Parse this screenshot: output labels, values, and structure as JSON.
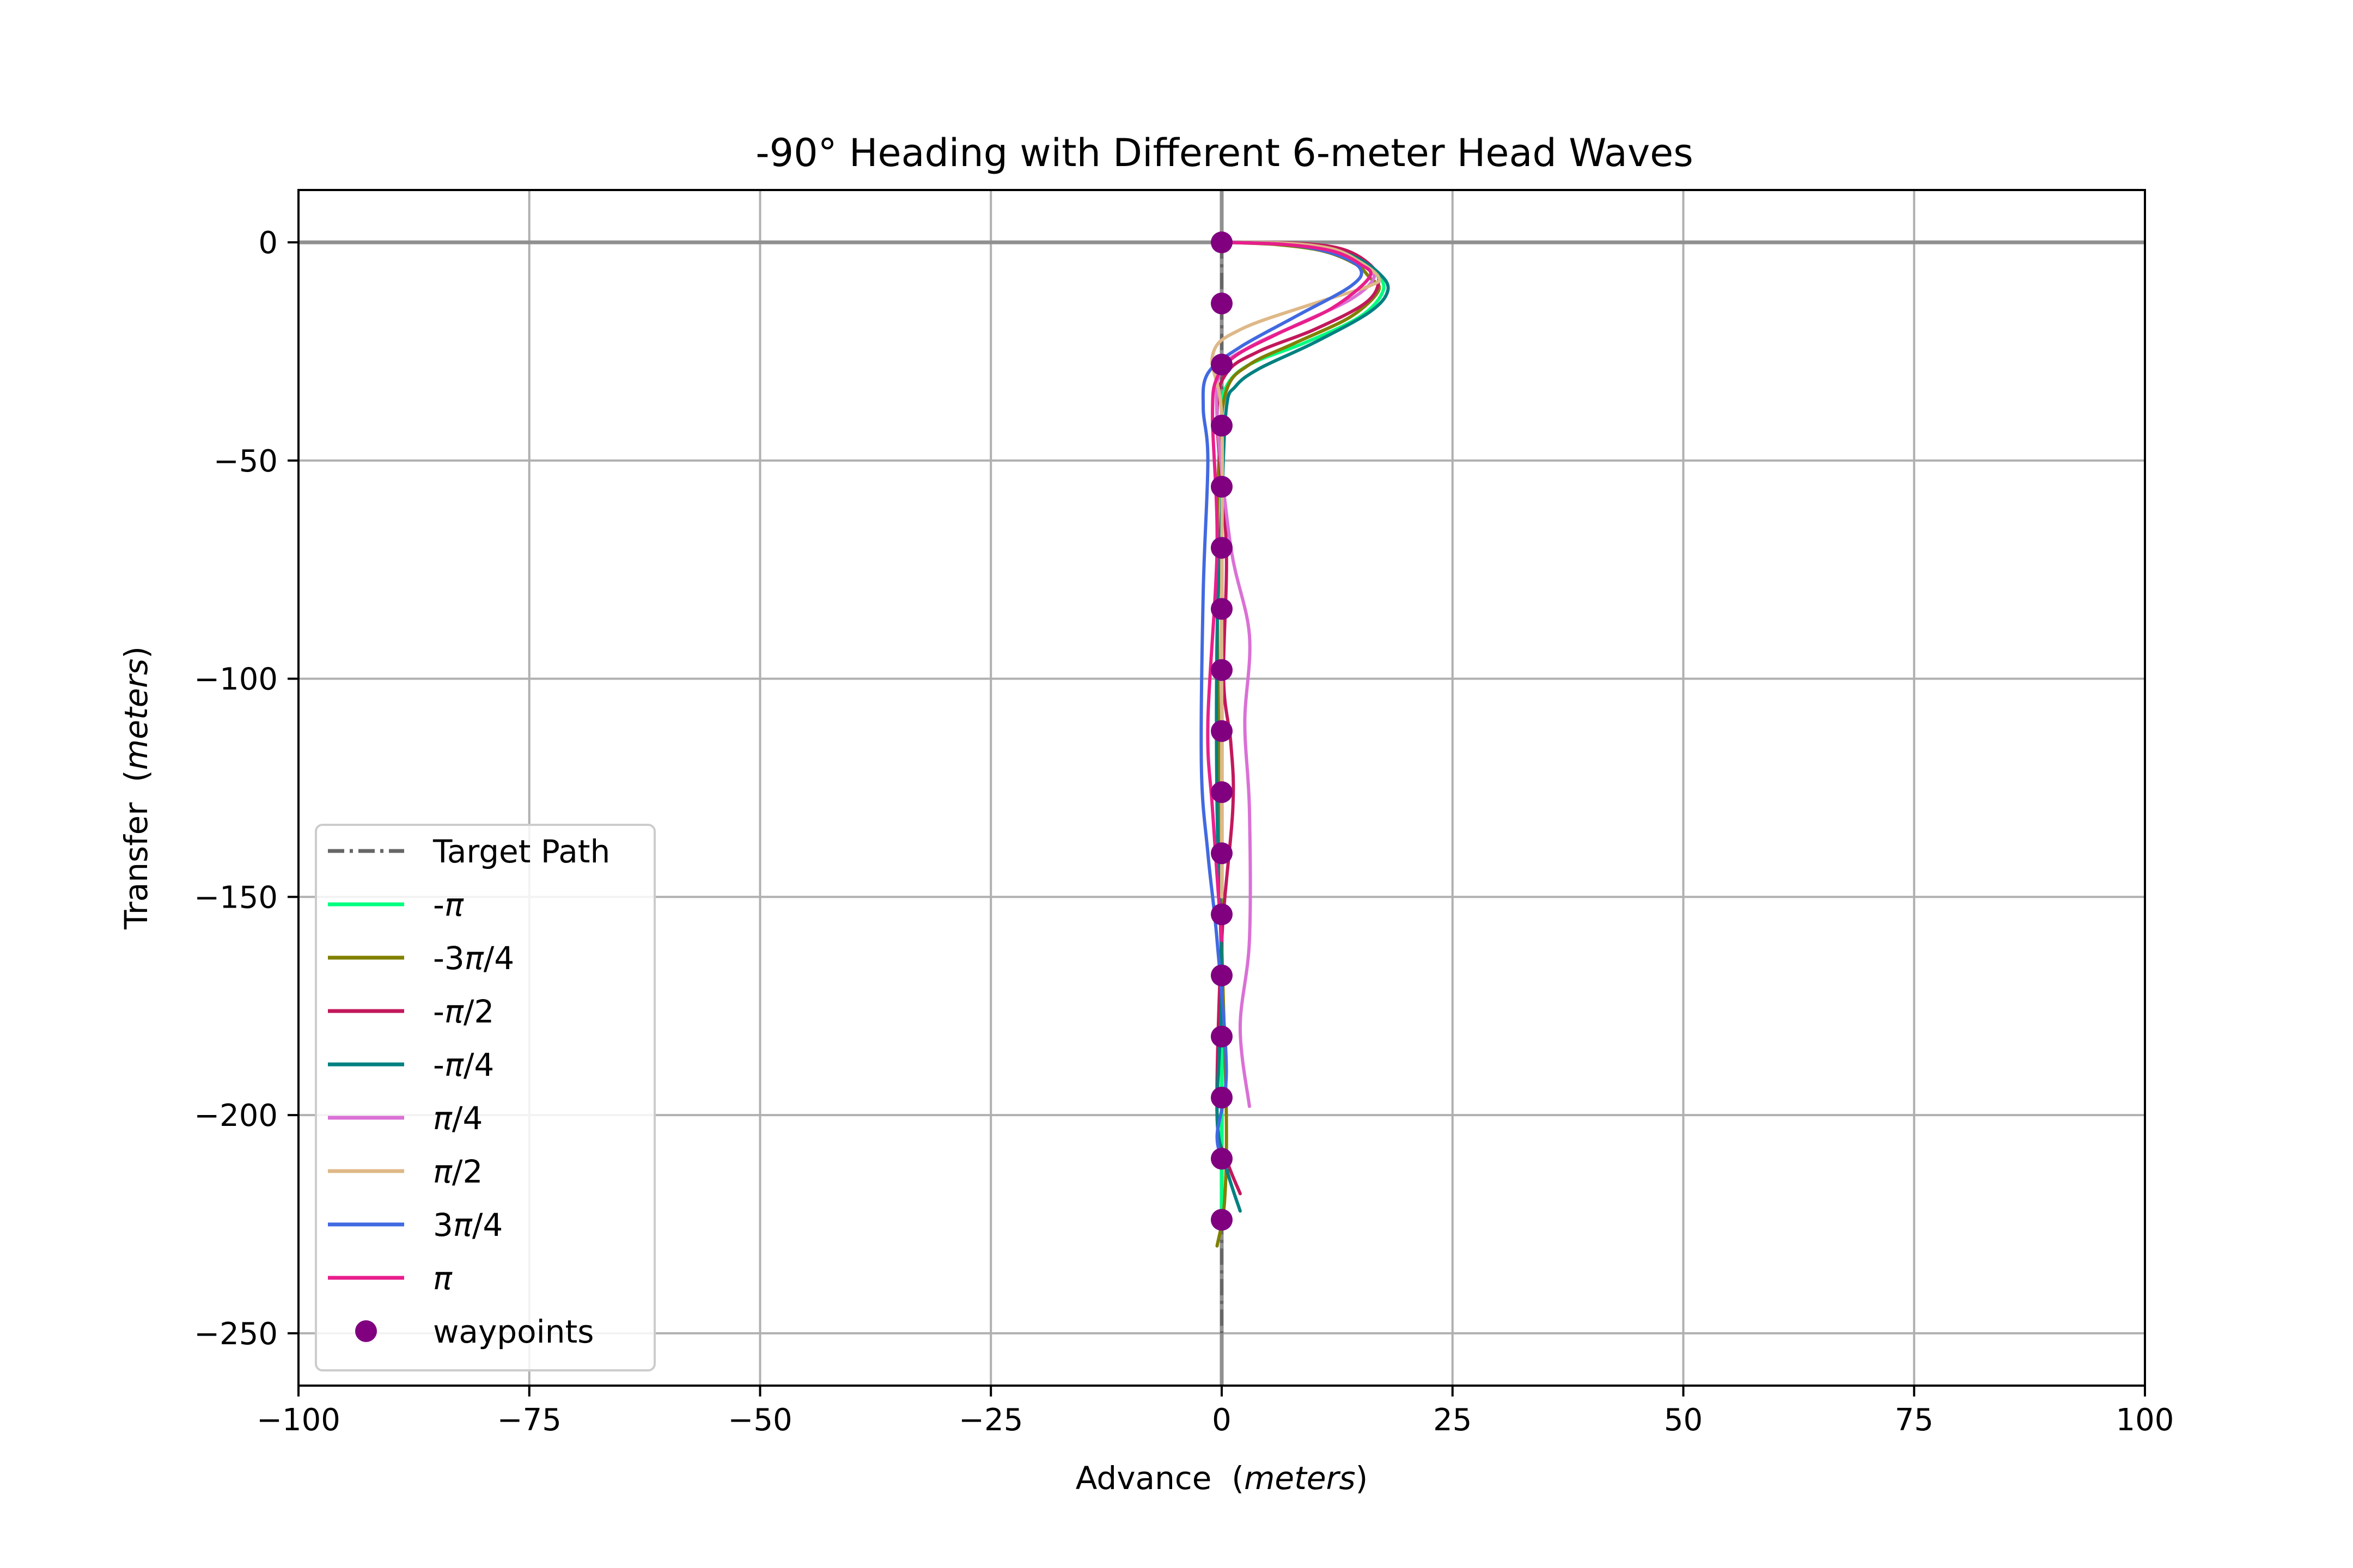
{
  "chart_data": {
    "type": "line",
    "title": "-90° Heading with Different 6-meter Head Waves",
    "xlabel": {
      "main": "Advance",
      "unit": "meters"
    },
    "ylabel": {
      "main": "Transfer",
      "unit": "meters"
    },
    "xlim": [
      -100,
      100
    ],
    "ylim": [
      -262,
      12
    ],
    "xticks": [
      -100,
      -75,
      -50,
      -25,
      0,
      25,
      50,
      75,
      100
    ],
    "yticks": [
      -250,
      -200,
      -150,
      -100,
      -50,
      0
    ],
    "xtick_labels": [
      "−100",
      "−75",
      "−50",
      "−25",
      "0",
      "25",
      "50",
      "75",
      "100"
    ],
    "ytick_labels": [
      "−250",
      "−200",
      "−150",
      "−100",
      "−50",
      "0"
    ],
    "grid": true,
    "legend_position": "lower-left",
    "target_path": {
      "name": "Target Path",
      "color": "#666666",
      "x": [
        0,
        0
      ],
      "y": [
        0,
        -250
      ]
    },
    "series": [
      {
        "name": "-π",
        "name_parts": [
          "-",
          "π",
          ""
        ],
        "color": "#00ff7f",
        "x": [
          0,
          8,
          13,
          16.5,
          17.5,
          15,
          9,
          3,
          0.5,
          0,
          0,
          0,
          0,
          0,
          0,
          0,
          0
        ],
        "y": [
          0,
          -0.5,
          -3,
          -7,
          -11,
          -17,
          -23,
          -28,
          -33,
          -40,
          -60,
          -90,
          -120,
          -150,
          -180,
          -210,
          -225
        ]
      },
      {
        "name": "-3π/4",
        "name_parts": [
          "-3",
          "π",
          "/4"
        ],
        "color": "#808000",
        "x": [
          0,
          6,
          11,
          14.5,
          16,
          17,
          14,
          8,
          3,
          0.5,
          -0.3,
          -0.5,
          -0.3,
          0,
          0.5,
          0.3,
          -0.5
        ],
        "y": [
          0,
          -0.5,
          -2,
          -5,
          -8,
          -11,
          -17,
          -23,
          -28,
          -34,
          -50,
          -80,
          -120,
          -160,
          -200,
          -220,
          -230
        ]
      },
      {
        "name": "-π/2",
        "name_parts": [
          "-",
          "π",
          "/2"
        ],
        "color": "#c2185b",
        "x": [
          0,
          8,
          13,
          16,
          17,
          15.5,
          10,
          4,
          0.5,
          -0.5,
          0.5,
          0.2,
          1,
          1.2,
          0,
          -0.5,
          0.5,
          2
        ],
        "y": [
          0,
          -0.2,
          -1.5,
          -5,
          -9,
          -14,
          -20,
          -25,
          -30,
          -40,
          -70,
          -100,
          -115,
          -130,
          -160,
          -200,
          -210,
          -218
        ]
      },
      {
        "name": "-π/4",
        "name_parts": [
          "-",
          "π",
          "/4"
        ],
        "color": "#008080",
        "x": [
          0,
          9,
          14,
          17,
          18,
          16,
          10,
          4,
          1.5,
          0.5,
          0,
          -0.5,
          -0.5,
          0,
          -0.5,
          0.5,
          2
        ],
        "y": [
          0,
          -0.5,
          -3,
          -7,
          -11,
          -16,
          -23,
          -29,
          -33,
          -38,
          -60,
          -90,
          -130,
          -170,
          -200,
          -212,
          -222
        ]
      },
      {
        "name": "π/4",
        "name_parts": [
          "",
          "π",
          "/4"
        ],
        "color": "#da70d6",
        "x": [
          0,
          7,
          12,
          15,
          16.5,
          14,
          8,
          3,
          0,
          -0.5,
          1,
          3,
          2.5,
          3,
          3,
          2,
          3
        ],
        "y": [
          0,
          -0.3,
          -2,
          -5,
          -8,
          -13,
          -19,
          -24,
          -29,
          -40,
          -70,
          -90,
          -110,
          -130,
          -160,
          -180,
          -198
        ]
      },
      {
        "name": "π/2",
        "name_parts": [
          "",
          "π",
          "/2"
        ],
        "color": "#deb887",
        "x": [
          0,
          7,
          12,
          15,
          17,
          16,
          10,
          2,
          -1,
          0,
          0,
          0,
          0
        ],
        "y": [
          0,
          -0.2,
          -1.5,
          -4.5,
          -8,
          -10,
          -14,
          -20,
          -26,
          -40,
          -80,
          -120,
          -150
        ]
      },
      {
        "name": "3π/4",
        "name_parts": [
          "3",
          "π",
          "/4"
        ],
        "color": "#4169e1",
        "x": [
          0,
          7,
          12,
          15,
          14,
          8,
          2,
          -1.5,
          -2,
          -1.5,
          -2,
          -2.2,
          -1.5,
          -0.5,
          0.5,
          -0.5,
          0.5
        ],
        "y": [
          0,
          -0.5,
          -2.5,
          -6,
          -10,
          -17,
          -24,
          -30,
          -38,
          -50,
          -80,
          -120,
          -140,
          -160,
          -190,
          -205,
          -212
        ]
      },
      {
        "name": "π",
        "name_parts": [
          "",
          "π",
          ""
        ],
        "color": "#e91e8c",
        "x": [
          0,
          7,
          12,
          15,
          16,
          12,
          6,
          1.5,
          -0.5,
          -1,
          -0.5,
          -1.5,
          -1,
          0
        ],
        "y": [
          0,
          -0.5,
          -2,
          -5,
          -8,
          -15,
          -21,
          -26,
          -31,
          -40,
          -70,
          -110,
          -130,
          -160
        ]
      }
    ],
    "waypoints": {
      "name": "waypoints",
      "color": "#800080",
      "x": [
        0,
        0,
        0,
        0,
        0,
        0,
        0,
        0,
        0,
        0,
        0,
        0,
        0,
        0,
        0,
        0,
        0
      ],
      "y": [
        0,
        -14,
        -28,
        -42,
        -56,
        -70,
        -84,
        -98,
        -112,
        -126,
        -140,
        -154,
        -168,
        -182,
        -196,
        -210,
        -224
      ]
    }
  }
}
